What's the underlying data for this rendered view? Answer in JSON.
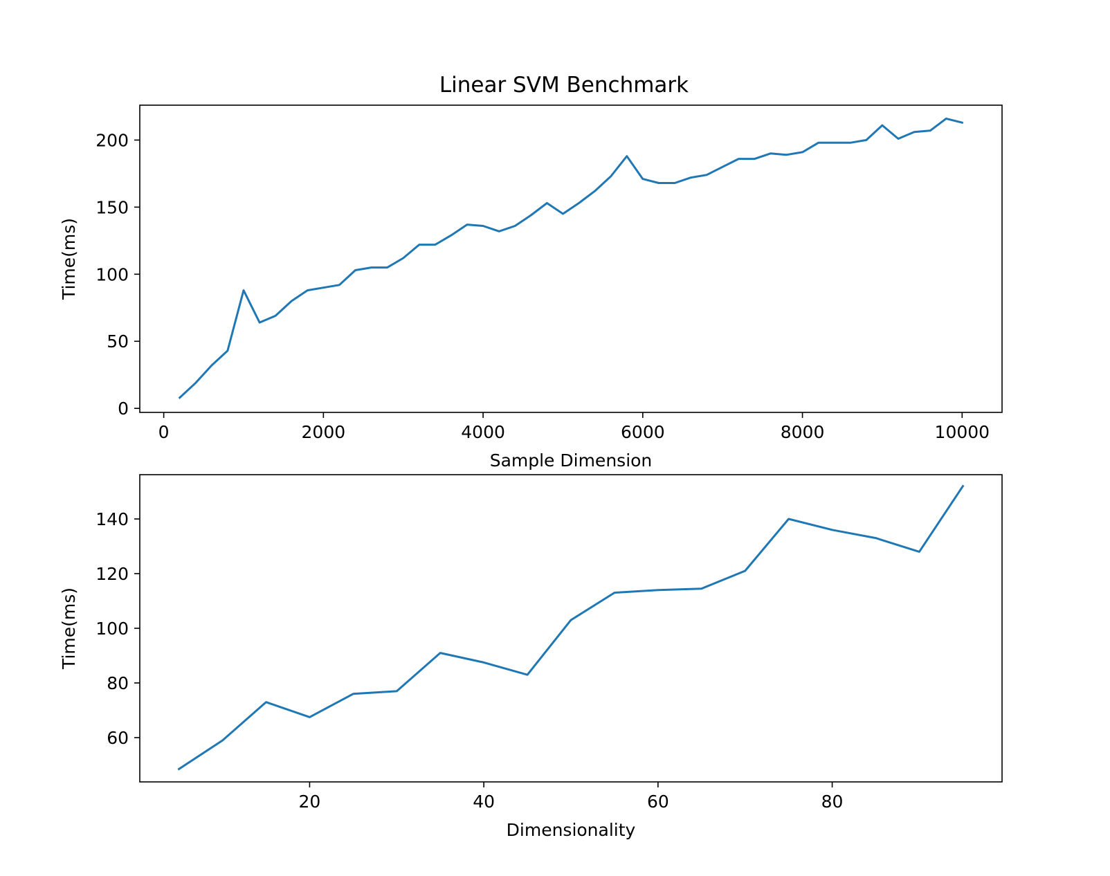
{
  "chart_data": [
    {
      "type": "line",
      "title": "Linear SVM Benchmark",
      "xlabel": "Sample Dimension",
      "ylabel": "Time(ms)",
      "xlim": [
        -300,
        10500
      ],
      "ylim": [
        -3,
        226
      ],
      "xticks": [
        0,
        2000,
        4000,
        6000,
        8000,
        10000
      ],
      "yticks": [
        0,
        50,
        100,
        150,
        200
      ],
      "grid": false,
      "color": "#1f77b4",
      "x": [
        200,
        400,
        600,
        800,
        1000,
        1200,
        1400,
        1600,
        1800,
        2000,
        2200,
        2400,
        2600,
        2800,
        3000,
        3200,
        3400,
        3600,
        3800,
        4000,
        4200,
        4400,
        4600,
        4800,
        5000,
        5200,
        5400,
        5600,
        5800,
        6000,
        6200,
        6400,
        6600,
        6800,
        7000,
        7200,
        7400,
        7600,
        7800,
        8000,
        8200,
        8400,
        8600,
        8800,
        9000,
        9200,
        9400,
        9600,
        9800,
        10000
      ],
      "y": [
        8,
        19,
        32,
        43,
        88,
        64,
        69,
        80,
        88,
        90,
        92,
        103,
        105,
        105,
        112,
        122,
        122,
        129,
        137,
        136,
        132,
        136,
        144,
        153,
        145,
        153,
        162,
        173,
        188,
        171,
        168,
        168,
        172,
        174,
        180,
        186,
        186,
        190,
        189,
        191,
        198,
        198,
        198,
        200,
        211,
        201,
        206,
        207,
        216,
        213
      ]
    },
    {
      "type": "line",
      "title": "",
      "xlabel": "Dimensionality",
      "ylabel": "Time(ms)",
      "xlim": [
        0.5,
        99.5
      ],
      "ylim": [
        43.8,
        156.2
      ],
      "xticks": [
        20,
        40,
        60,
        80
      ],
      "yticks": [
        60,
        80,
        100,
        120,
        140
      ],
      "grid": false,
      "color": "#1f77b4",
      "x": [
        5,
        10,
        15,
        20,
        25,
        30,
        35,
        40,
        45,
        50,
        55,
        60,
        65,
        70,
        75,
        80,
        85,
        90,
        95
      ],
      "y": [
        48.5,
        59,
        73,
        67.5,
        76,
        77,
        91,
        87.5,
        83,
        103,
        113,
        114,
        114.5,
        121,
        140,
        136,
        133,
        128,
        152
      ]
    }
  ]
}
